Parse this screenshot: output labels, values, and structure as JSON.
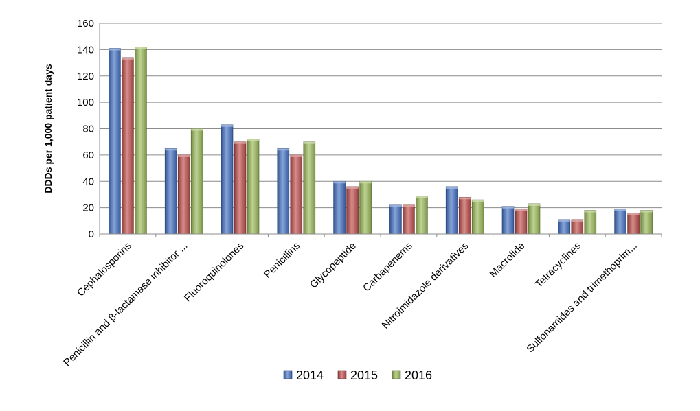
{
  "chart_data": {
    "type": "bar",
    "title": "",
    "xlabel": "",
    "ylabel": "DDDs per 1,000 patient days",
    "ylim": [
      0,
      160
    ],
    "yticks": [
      0,
      20,
      40,
      60,
      80,
      100,
      120,
      140,
      160
    ],
    "grid": true,
    "legend_position": "bottom",
    "categories": [
      "Cephalosporins",
      "Penicillin and β-lactamase inhibitor ...",
      "Fluoroquinolones",
      "Penicillins",
      "Glycopeptide",
      "Carbapenems",
      "Nitroimidazole derivatives",
      "Macrolide",
      "Tetracyclines",
      "Sulfonamides and trimethoprim..."
    ],
    "series": [
      {
        "name": "2014",
        "color": "#4472C4",
        "values": [
          141,
          65,
          83,
          65,
          40,
          22,
          36,
          21,
          11,
          19
        ]
      },
      {
        "name": "2015",
        "color": "#C0504D",
        "values": [
          134,
          60,
          70,
          60,
          36,
          22,
          28,
          19,
          11,
          16
        ]
      },
      {
        "name": "2016",
        "color": "#9BBB59",
        "values": [
          142,
          80,
          72,
          70,
          40,
          29,
          26,
          23,
          18,
          18
        ]
      }
    ]
  }
}
